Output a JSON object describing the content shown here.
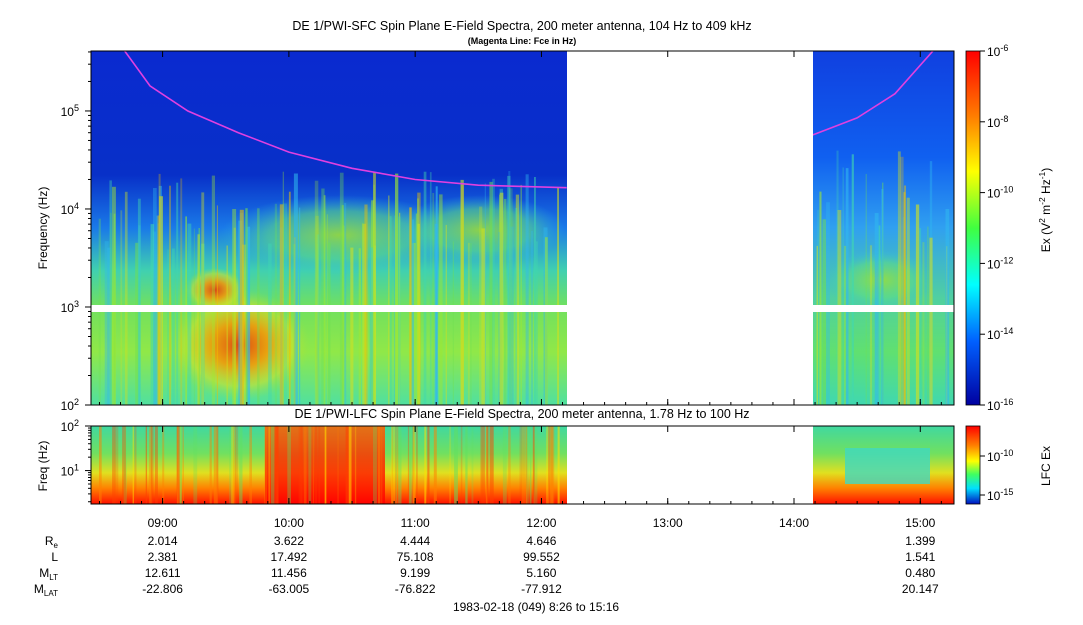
{
  "chart_data": [
    {
      "type": "heatmap",
      "title": "DE 1/PWI-SFC  Spin Plane E-Field Spectra, 200 meter antenna, 104 Hz to 409 kHz",
      "subtitle": "(Magenta Line: Fce in Hz)",
      "ylabel": "Frequency (Hz)",
      "yscale": "log",
      "ylim": [
        100,
        409000
      ],
      "yticks": [
        {
          "value": 100,
          "base": "10",
          "exp": "2"
        },
        {
          "value": 1000,
          "base": "10",
          "exp": "3"
        },
        {
          "value": 10000,
          "base": "10",
          "exp": "4"
        },
        {
          "value": 100000,
          "base": "10",
          "exp": "5"
        }
      ],
      "xlim_hours": [
        8.433,
        15.267
      ],
      "data_gaps_hours": [
        [
          12.2,
          14.15
        ]
      ],
      "colorbar": {
        "label_parts": {
          "a": "Ex (V",
          "b": "2",
          "c": " m",
          "d": "-2",
          "e": " Hz",
          "f": "-1",
          "g": ")"
        },
        "scale": "log",
        "range": [
          1e-16,
          1e-06
        ],
        "ticks": [
          {
            "value": 1e-06,
            "base": "10",
            "exp": "-6"
          },
          {
            "value": 1e-08,
            "base": "10",
            "exp": "-8"
          },
          {
            "value": 1e-10,
            "base": "10",
            "exp": "-10"
          },
          {
            "value": 1e-12,
            "base": "10",
            "exp": "-12"
          },
          {
            "value": 1e-14,
            "base": "10",
            "exp": "-14"
          },
          {
            "value": 1e-16,
            "base": "10",
            "exp": "-16"
          }
        ]
      },
      "fce_line": {
        "color": "#e040e0",
        "points": [
          {
            "hour": 8.7,
            "freq": 409000
          },
          {
            "hour": 8.9,
            "freq": 180000
          },
          {
            "hour": 9.2,
            "freq": 100000
          },
          {
            "hour": 9.6,
            "freq": 60000
          },
          {
            "hour": 10.0,
            "freq": 38000
          },
          {
            "hour": 10.5,
            "freq": 26000
          },
          {
            "hour": 11.0,
            "freq": 20000
          },
          {
            "hour": 11.5,
            "freq": 17500
          },
          {
            "hour": 12.2,
            "freq": 16500
          },
          {
            "hour": 14.15,
            "freq": 57000
          },
          {
            "hour": 14.5,
            "freq": 85000
          },
          {
            "hour": 14.8,
            "freq": 150000
          },
          {
            "hour": 15.1,
            "freq": 409000
          }
        ]
      }
    },
    {
      "type": "heatmap",
      "title": "DE 1/PWI-LFC  Spin Plane E-Field Spectra, 200 meter antenna, 1.78 Hz to 100 Hz",
      "ylabel": "Freq (Hz)",
      "yscale": "log",
      "ylim": [
        1.78,
        100
      ],
      "yticks": [
        {
          "value": 10,
          "base": "10",
          "exp": "1"
        },
        {
          "value": 100,
          "base": "10",
          "exp": "2"
        }
      ],
      "data_gaps_hours": [
        [
          12.2,
          14.15
        ]
      ],
      "colorbar": {
        "label": "LFC Ex",
        "scale": "log",
        "ticks": [
          {
            "value": 1e-10,
            "base": "10",
            "exp": "-10"
          },
          {
            "value": 1e-15,
            "base": "10",
            "exp": "-15"
          }
        ]
      }
    }
  ],
  "xaxis": {
    "ticks": [
      {
        "hour": 9,
        "label": "09:00"
      },
      {
        "hour": 10,
        "label": "10:00"
      },
      {
        "hour": 11,
        "label": "11:00"
      },
      {
        "hour": 12,
        "label": "12:00"
      },
      {
        "hour": 13,
        "label": "13:00"
      },
      {
        "hour": 14,
        "label": "14:00"
      },
      {
        "hour": 15,
        "label": "15:00"
      }
    ],
    "footer": "1983-02-18 (049) 8:26 to 15:16"
  },
  "ephemeris": {
    "rows": [
      {
        "name": "R",
        "sub": "e",
        "values": [
          "2.014",
          "3.622",
          "4.444",
          "4.646",
          "",
          "",
          "1.399"
        ]
      },
      {
        "name": "L",
        "sub": "",
        "values": [
          "2.381",
          "17.492",
          "75.108",
          "99.552",
          "",
          "",
          "1.541"
        ]
      },
      {
        "name": "M",
        "sub": "LT",
        "values": [
          "12.611",
          "11.456",
          "9.199",
          "5.160",
          "",
          "",
          "0.480"
        ]
      },
      {
        "name": "M",
        "sub": "LAT",
        "values": [
          "-22.806",
          "-63.005",
          "-76.822",
          "-77.912",
          "",
          "",
          "20.147"
        ]
      }
    ]
  }
}
